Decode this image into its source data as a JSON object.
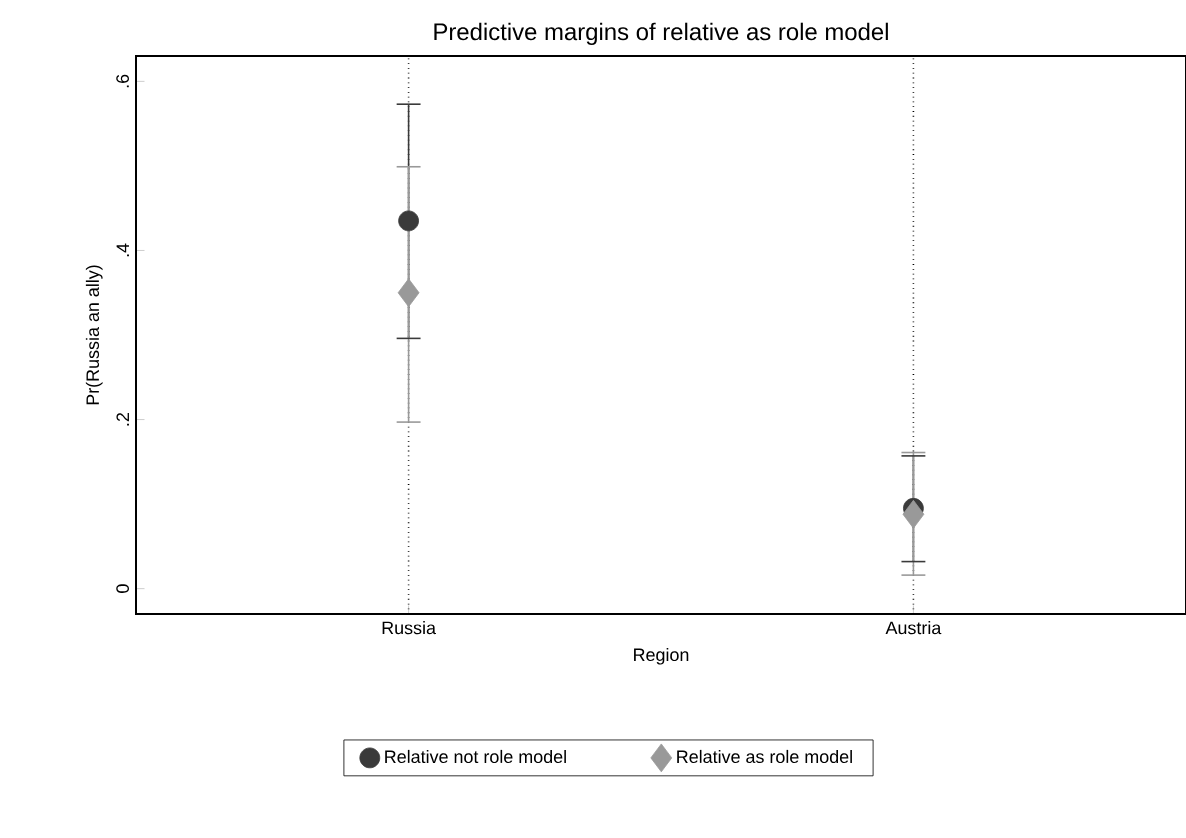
{
  "chart_data": {
    "type": "scatter",
    "title": "Predictive margins of relative as role model",
    "xlabel": "Region",
    "ylabel": "Pr(Russia an ally)",
    "categories": [
      "Russia",
      "Austria"
    ],
    "ylim": [
      -0.03,
      0.63
    ],
    "yticks": [
      {
        "value": 0,
        "label": "0"
      },
      {
        "value": 0.2,
        "label": ".2"
      },
      {
        "value": 0.4,
        "label": ".4"
      },
      {
        "value": 0.6,
        "label": ".6"
      }
    ],
    "grid": "x",
    "legend": "bottom",
    "series": [
      {
        "name": "Relative not role model",
        "color": "#3a3a3a",
        "marker": "circle",
        "values": [
          0.435,
          0.095
        ],
        "errors": [
          [
            0.296,
            0.573
          ],
          [
            0.032,
            0.157
          ]
        ]
      },
      {
        "name": "Relative as role model",
        "color": "#999999",
        "marker": "diamond",
        "values": [
          0.35,
          0.088
        ],
        "errors": [
          [
            0.197,
            0.499
          ],
          [
            0.016,
            0.161
          ]
        ]
      }
    ]
  }
}
